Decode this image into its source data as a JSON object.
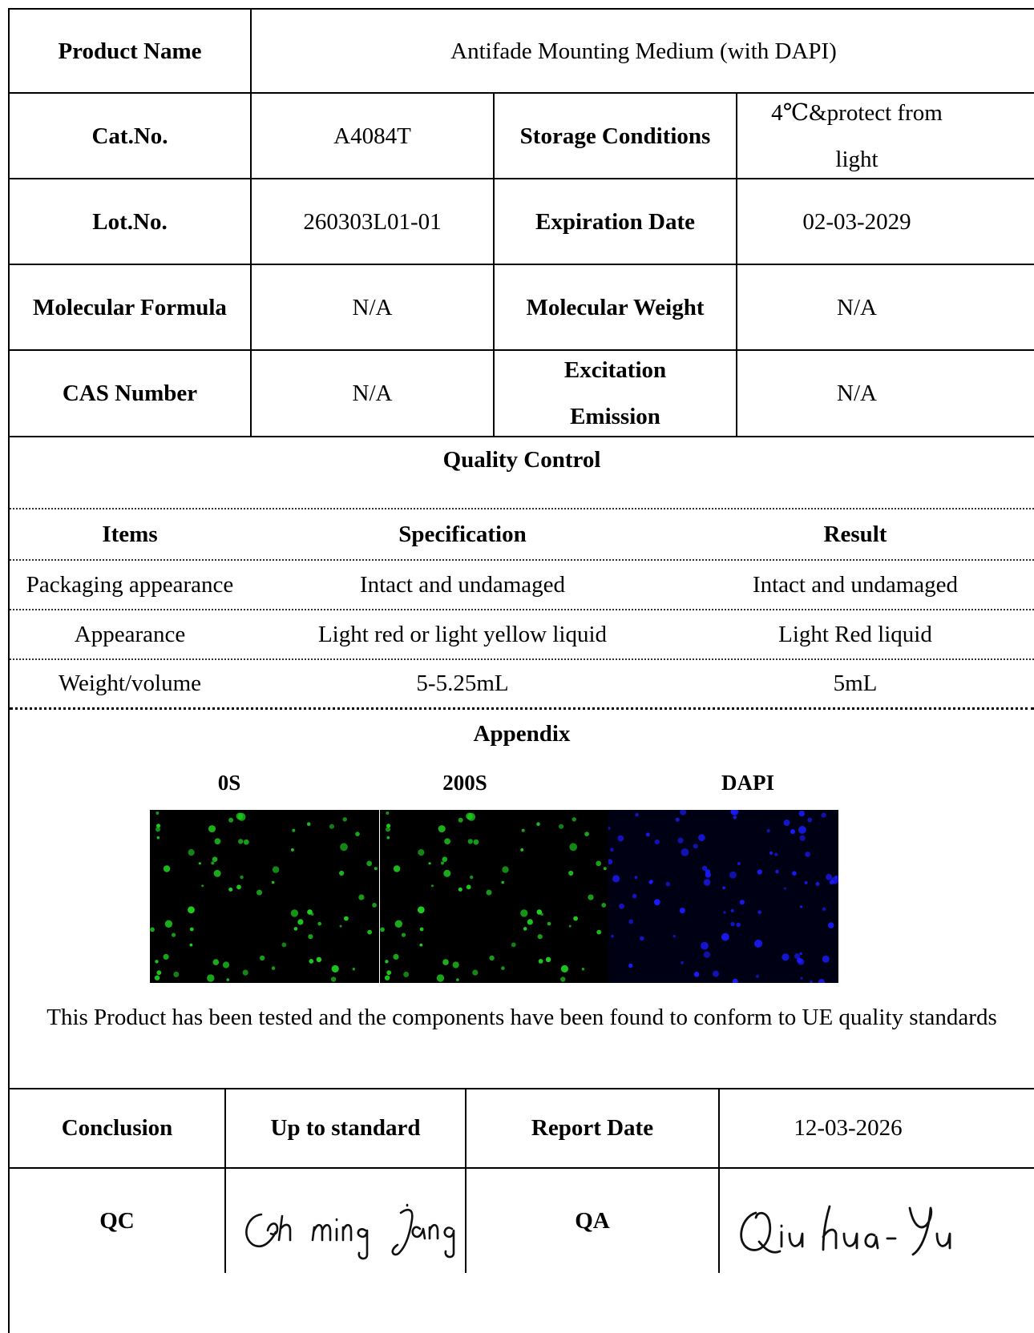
{
  "product": {
    "label": "Product Name",
    "value": "Antifade Mounting Medium (with DAPI)"
  },
  "info_rows": [
    {
      "l1": "Cat.No.",
      "v1": "A4084T",
      "l2": "Storage Conditions",
      "v2": "4℃&protect from light"
    },
    {
      "l1": "Lot.No.",
      "v1": "260303L01-01",
      "l2": "Expiration Date",
      "v2": "02-03-2029"
    },
    {
      "l1": "Molecular Formula",
      "v1": "N/A",
      "l2": "Molecular Weight",
      "v2": "N/A"
    },
    {
      "l1": "CAS Number",
      "v1": "N/A",
      "l2": "Excitation Emission",
      "v2": "N/A"
    }
  ],
  "quality_control": {
    "title": "Quality Control",
    "headers": [
      "Items",
      "Specification",
      "Result"
    ],
    "rows": [
      [
        "Packaging appearance",
        "Intact and undamaged",
        "Intact and undamaged"
      ],
      [
        "Appearance",
        "Light red or light yellow liquid",
        "Light Red liquid"
      ],
      [
        "Weight/volume",
        "5-5.25mL",
        "5mL"
      ]
    ]
  },
  "appendix": {
    "title": "Appendix",
    "image_labels": [
      "0S",
      "200S",
      "DAPI"
    ],
    "colors": {
      "green_cells": "#1fd11f",
      "blue_cells": "#1a1aff",
      "background": "#000000",
      "dapi_background": "#000014"
    }
  },
  "statement": "This Product has been tested and the components have been found to conform to UE quality standards",
  "conclusion": {
    "label": "Conclusion",
    "value": "Up to standard",
    "date_label": "Report Date",
    "date": "12-03-2026"
  },
  "signoff": {
    "qc_label": "QC",
    "qa_label": "QA",
    "qc_signature": "Cehn ming Jiang",
    "qa_signature": "Qiu hua - Yu"
  }
}
